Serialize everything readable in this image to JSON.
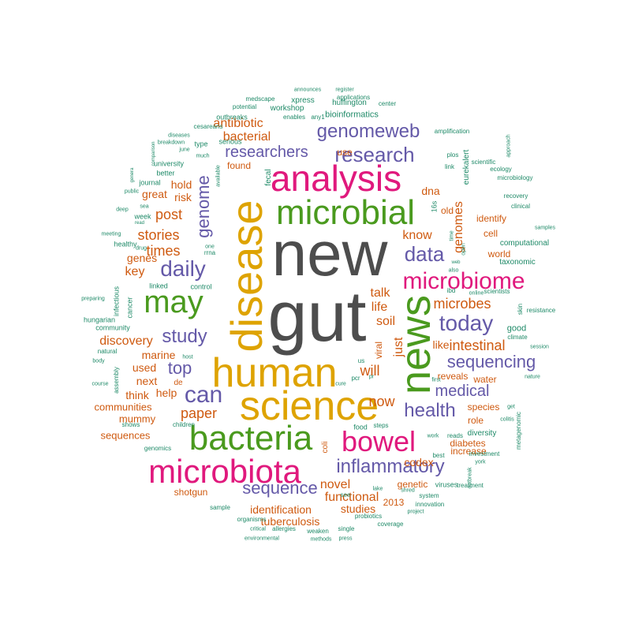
{
  "palette": {
    "gray": "#4d4d4d",
    "gold": "#dea300",
    "green": "#4a9a1e",
    "pink": "#e0197d",
    "purple": "#6459a8",
    "orange": "#cf5a10",
    "teal": "#1f8a68"
  },
  "words": [
    {
      "text": "new",
      "color": "gray"
    },
    {
      "text": "gut",
      "color": "gray"
    },
    {
      "text": "disease",
      "color": "gold"
    },
    {
      "text": "human",
      "color": "gold"
    },
    {
      "text": "science",
      "color": "gold"
    },
    {
      "text": "microbial",
      "color": "green"
    },
    {
      "text": "analysis",
      "color": "pink"
    },
    {
      "text": "news",
      "color": "green"
    },
    {
      "text": "bacteria",
      "color": "green"
    },
    {
      "text": "microbiota",
      "color": "pink"
    },
    {
      "text": "microbiome",
      "color": "pink"
    },
    {
      "text": "may",
      "color": "green"
    },
    {
      "text": "bowel",
      "color": "pink"
    },
    {
      "text": "research",
      "color": "purple"
    },
    {
      "text": "today",
      "color": "purple"
    },
    {
      "text": "daily",
      "color": "purple"
    },
    {
      "text": "genomeweb",
      "color": "purple"
    },
    {
      "text": "can",
      "color": "purple"
    },
    {
      "text": "inflammatory",
      "color": "purple"
    },
    {
      "text": "study",
      "color": "purple"
    },
    {
      "text": "health",
      "color": "purple"
    },
    {
      "text": "sequencing",
      "color": "purple"
    },
    {
      "text": "data",
      "color": "purple"
    },
    {
      "text": "researchers",
      "color": "purple"
    },
    {
      "text": "genome",
      "color": "purple"
    },
    {
      "text": "top",
      "color": "purple"
    },
    {
      "text": "medical",
      "color": "purple"
    },
    {
      "text": "sequence",
      "color": "purple"
    },
    {
      "text": "paper",
      "color": "orange"
    },
    {
      "text": "now",
      "color": "orange"
    },
    {
      "text": "intestinal",
      "color": "orange"
    },
    {
      "text": "will",
      "color": "orange"
    },
    {
      "text": "microbes",
      "color": "orange"
    },
    {
      "text": "stories",
      "color": "orange"
    },
    {
      "text": "times",
      "color": "orange"
    },
    {
      "text": "post",
      "color": "orange"
    },
    {
      "text": "bacterial",
      "color": "orange"
    },
    {
      "text": "antibiotic",
      "color": "orange"
    },
    {
      "text": "discovery",
      "color": "orange"
    },
    {
      "text": "key",
      "color": "orange"
    },
    {
      "text": "genomes",
      "color": "orange"
    },
    {
      "text": "soil",
      "color": "orange"
    },
    {
      "text": "life",
      "color": "orange"
    },
    {
      "text": "talk",
      "color": "orange"
    },
    {
      "text": "know",
      "color": "orange"
    },
    {
      "text": "just",
      "color": "orange"
    },
    {
      "text": "novel",
      "color": "orange"
    },
    {
      "text": "functional",
      "color": "orange"
    },
    {
      "text": "identification",
      "color": "orange"
    },
    {
      "text": "tuberculosis",
      "color": "orange"
    },
    {
      "text": "studies",
      "color": "orange"
    },
    {
      "text": "marine",
      "color": "orange"
    },
    {
      "text": "used",
      "color": "orange"
    },
    {
      "text": "next",
      "color": "orange"
    },
    {
      "text": "help",
      "color": "orange"
    },
    {
      "text": "think",
      "color": "orange"
    },
    {
      "text": "communities",
      "color": "orange"
    },
    {
      "text": "mummy",
      "color": "orange"
    },
    {
      "text": "sequences",
      "color": "orange"
    },
    {
      "text": "shotgun",
      "color": "orange"
    },
    {
      "text": "genes",
      "color": "orange"
    },
    {
      "text": "risk",
      "color": "orange"
    },
    {
      "text": "great",
      "color": "orange"
    },
    {
      "text": "hold",
      "color": "orange"
    },
    {
      "text": "found",
      "color": "orange"
    },
    {
      "text": "use",
      "color": "orange"
    },
    {
      "text": "dna",
      "color": "orange"
    },
    {
      "text": "old",
      "color": "orange"
    },
    {
      "text": "like",
      "color": "orange"
    },
    {
      "text": "codex",
      "color": "orange"
    },
    {
      "text": "increase",
      "color": "orange"
    },
    {
      "text": "role",
      "color": "orange"
    },
    {
      "text": "species",
      "color": "orange"
    },
    {
      "text": "diabetes",
      "color": "orange"
    },
    {
      "text": "genetic",
      "color": "orange"
    },
    {
      "text": "2013",
      "color": "orange"
    },
    {
      "text": "identify",
      "color": "orange"
    },
    {
      "text": "cell",
      "color": "orange"
    },
    {
      "text": "world",
      "color": "orange"
    },
    {
      "text": "water",
      "color": "orange"
    },
    {
      "text": "reveals",
      "color": "orange"
    },
    {
      "text": "de",
      "color": "orange"
    },
    {
      "text": "viral",
      "color": "orange"
    },
    {
      "text": "coli",
      "color": "orange"
    },
    {
      "text": "16s",
      "color": "teal"
    },
    {
      "text": "bioinformatics",
      "color": "teal"
    },
    {
      "text": "huffington",
      "color": "teal"
    },
    {
      "text": "xpress",
      "color": "teal"
    },
    {
      "text": "workshop",
      "color": "teal"
    },
    {
      "text": "outbreaks",
      "color": "teal"
    },
    {
      "text": "enables",
      "color": "teal"
    },
    {
      "text": "any1",
      "color": "teal"
    },
    {
      "text": "serious",
      "color": "teal"
    },
    {
      "text": "university",
      "color": "teal"
    },
    {
      "text": "type",
      "color": "teal"
    },
    {
      "text": "journal",
      "color": "teal"
    },
    {
      "text": "better",
      "color": "teal"
    },
    {
      "text": "week",
      "color": "teal"
    },
    {
      "text": "healthy",
      "color": "teal"
    },
    {
      "text": "linked",
      "color": "teal"
    },
    {
      "text": "control",
      "color": "teal"
    },
    {
      "text": "infectious",
      "color": "teal"
    },
    {
      "text": "cancer",
      "color": "teal"
    },
    {
      "text": "hungarian",
      "color": "teal"
    },
    {
      "text": "community",
      "color": "teal"
    },
    {
      "text": "assembly",
      "color": "teal"
    },
    {
      "text": "natural",
      "color": "teal"
    },
    {
      "text": "shows",
      "color": "teal"
    },
    {
      "text": "genomics",
      "color": "teal"
    },
    {
      "text": "children",
      "color": "teal"
    },
    {
      "text": "sample",
      "color": "teal"
    },
    {
      "text": "organisms",
      "color": "teal"
    },
    {
      "text": "allergies",
      "color": "teal"
    },
    {
      "text": "critical",
      "color": "teal"
    },
    {
      "text": "environmental",
      "color": "teal"
    },
    {
      "text": "weaken",
      "color": "teal"
    },
    {
      "text": "methods",
      "color": "teal"
    },
    {
      "text": "single",
      "color": "teal"
    },
    {
      "text": "press",
      "color": "teal"
    },
    {
      "text": "probiotics",
      "color": "teal"
    },
    {
      "text": "coverage",
      "color": "teal"
    },
    {
      "text": "project",
      "color": "teal"
    },
    {
      "text": "lake",
      "color": "teal"
    },
    {
      "text": "shred",
      "color": "teal"
    },
    {
      "text": "innovation",
      "color": "teal"
    },
    {
      "text": "system",
      "color": "teal"
    },
    {
      "text": "viruses",
      "color": "teal"
    },
    {
      "text": "treatment",
      "color": "teal"
    },
    {
      "text": "diversity",
      "color": "teal"
    },
    {
      "text": "reads",
      "color": "teal"
    },
    {
      "text": "work",
      "color": "teal"
    },
    {
      "text": "best",
      "color": "teal"
    },
    {
      "text": "investment",
      "color": "teal"
    },
    {
      "text": "york",
      "color": "teal"
    },
    {
      "text": "outbreak",
      "color": "teal"
    },
    {
      "text": "metagenomic",
      "color": "teal"
    },
    {
      "text": "colitis",
      "color": "teal"
    },
    {
      "text": "get",
      "color": "teal"
    },
    {
      "text": "nature",
      "color": "teal"
    },
    {
      "text": "session",
      "color": "teal"
    },
    {
      "text": "climate",
      "color": "teal"
    },
    {
      "text": "good",
      "color": "teal"
    },
    {
      "text": "resistance",
      "color": "teal"
    },
    {
      "text": "skin",
      "color": "teal"
    },
    {
      "text": "taxonomic",
      "color": "teal"
    },
    {
      "text": "computational",
      "color": "teal"
    },
    {
      "text": "samples",
      "color": "teal"
    },
    {
      "text": "clinical",
      "color": "teal"
    },
    {
      "text": "recovery",
      "color": "teal"
    },
    {
      "text": "microbiology",
      "color": "teal"
    },
    {
      "text": "ecology",
      "color": "teal"
    },
    {
      "text": "scientific",
      "color": "teal"
    },
    {
      "text": "approach",
      "color": "teal"
    },
    {
      "text": "amplification",
      "color": "teal"
    },
    {
      "text": "eurekalert",
      "color": "teal"
    },
    {
      "text": "link",
      "color": "teal"
    },
    {
      "text": "plos",
      "color": "teal"
    },
    {
      "text": "center",
      "color": "teal"
    },
    {
      "text": "applications",
      "color": "teal"
    },
    {
      "text": "register",
      "color": "teal"
    },
    {
      "text": "announces",
      "color": "teal"
    },
    {
      "text": "medscape",
      "color": "teal"
    },
    {
      "text": "potential",
      "color": "teal"
    },
    {
      "text": "cesareans",
      "color": "teal"
    },
    {
      "text": "diseases",
      "color": "teal"
    },
    {
      "text": "breakdown",
      "color": "teal"
    },
    {
      "text": "june",
      "color": "teal"
    },
    {
      "text": "much",
      "color": "teal"
    },
    {
      "text": "comparison",
      "color": "teal"
    },
    {
      "text": "genera",
      "color": "teal"
    },
    {
      "text": "public",
      "color": "teal"
    },
    {
      "text": "sea",
      "color": "teal"
    },
    {
      "text": "deep",
      "color": "teal"
    },
    {
      "text": "read",
      "color": "teal"
    },
    {
      "text": "meeting",
      "color": "teal"
    },
    {
      "text": "drug",
      "color": "teal"
    },
    {
      "text": "preparing",
      "color": "teal"
    },
    {
      "text": "rrna",
      "color": "teal"
    },
    {
      "text": "one",
      "color": "teal"
    },
    {
      "text": "available",
      "color": "teal"
    },
    {
      "text": "fecal",
      "color": "teal"
    },
    {
      "text": "ibd",
      "color": "teal"
    },
    {
      "text": "online",
      "color": "teal"
    },
    {
      "text": "scientists",
      "color": "teal"
    },
    {
      "text": "time",
      "color": "teal"
    },
    {
      "text": "open",
      "color": "teal"
    },
    {
      "text": "web",
      "color": "teal"
    },
    {
      "text": "also",
      "color": "teal"
    },
    {
      "text": "first",
      "color": "teal"
    },
    {
      "text": "us",
      "color": "teal"
    },
    {
      "text": "pcr",
      "color": "teal"
    },
    {
      "text": "pr",
      "color": "teal"
    },
    {
      "text": "cure",
      "color": "teal"
    },
    {
      "text": "food",
      "color": "teal"
    },
    {
      "text": "steps",
      "color": "teal"
    },
    {
      "text": "see",
      "color": "teal"
    },
    {
      "text": "body",
      "color": "teal"
    },
    {
      "text": "course",
      "color": "teal"
    },
    {
      "text": "host",
      "color": "teal"
    }
  ]
}
